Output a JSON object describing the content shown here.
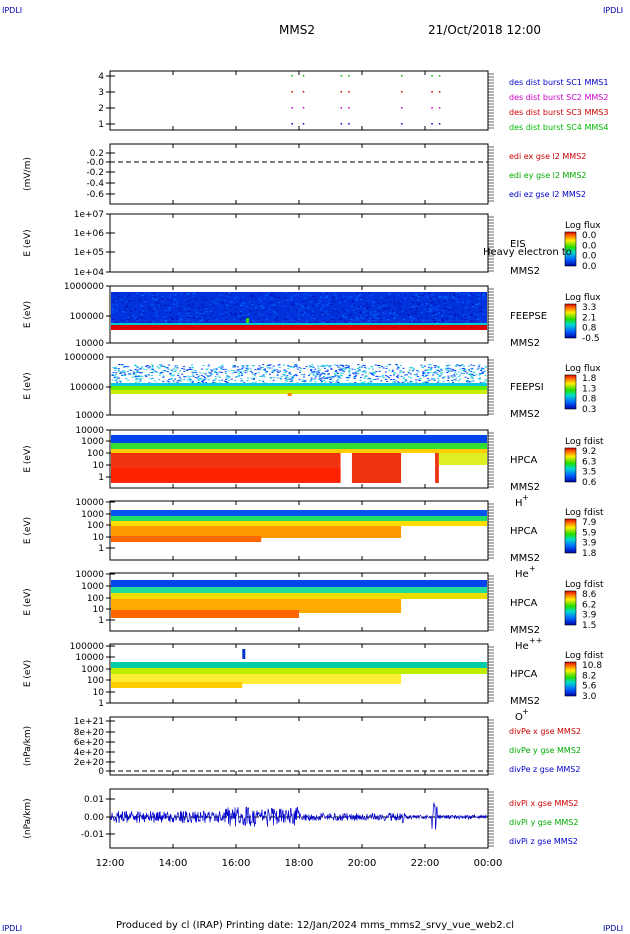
{
  "header": {
    "corner_left": "IPDLI",
    "corner_right": "IPDLI",
    "mission": "MMS2",
    "date": "21/Oct/2018 12:00"
  },
  "footer": {
    "text": "Produced by cl (IRAP)   Printing date: 12/Jan/2024   mms_mms2_srvy_vue_web2.cl"
  },
  "chart_data": {
    "type": "spectrogram-stack",
    "xaxis": {
      "ticks": [
        "12:00",
        "14:00",
        "16:00",
        "18:00",
        "20:00",
        "22:00",
        "00:00"
      ]
    },
    "panels": [
      {
        "id": "dist",
        "yticks": [
          "4",
          "3",
          "2",
          "1"
        ],
        "legend": [
          {
            "text": "des dist burst SC1 MMS1",
            "color": "#0000cc"
          },
          {
            "text": "des dist burst SC2 MMS2",
            "color": "#cc00cc"
          },
          {
            "text": "des dist burst SC3 MMS3",
            "color": "#cc0000"
          },
          {
            "text": "des dist burst SC4 MMS4",
            "color": "#00bb00"
          }
        ]
      },
      {
        "id": "edi",
        "ylabel": "(mV/m)",
        "yticks": [
          "0.2",
          "-0.0",
          "-0.2",
          "-0.4",
          "-0.6"
        ],
        "legend": [
          {
            "text": "edi ex gse l2 MMS2",
            "color": "#cc0000"
          },
          {
            "text": "edi ey gse l2 MMS2",
            "color": "#00aa00"
          },
          {
            "text": "edi ez gse l2 MMS2",
            "color": "#0000cc"
          }
        ]
      },
      {
        "id": "eis",
        "ylabel": "E (eV)",
        "yticks": [
          "1e+07",
          "1e+06",
          "1e+05",
          "1e+04"
        ],
        "name1": "EIS",
        "name2": "MMS2",
        "overlay": "Heavy electron to",
        "cb_title": "Log flux",
        "cb": [
          "0.0",
          "0.0",
          "0.0",
          "0.0"
        ]
      },
      {
        "id": "feepse",
        "ylabel": "E (eV)",
        "yticks": [
          "1000000",
          "100000",
          "10000"
        ],
        "name1": "FEEPSE",
        "name2": "MMS2",
        "cb_title": "Log flux",
        "cb": [
          "3.3",
          "2.1",
          "0.8",
          "-0.5"
        ]
      },
      {
        "id": "feepsi",
        "ylabel": "E (eV)",
        "yticks": [
          "1000000",
          "100000",
          "10000"
        ],
        "name1": "FEEPSI",
        "name2": "MMS2",
        "cb_title": "Log flux",
        "cb": [
          "1.8",
          "1.3",
          "0.8",
          "0.3"
        ]
      },
      {
        "id": "hpca_h",
        "ylabel": "E (eV)",
        "yticks": [
          "10000",
          "1000",
          "100",
          "10",
          "1"
        ],
        "name1": "HPCA",
        "name2": "MMS2",
        "species": "H",
        "charge": "+",
        "cb_title": "Log fdist",
        "cb": [
          "9.2",
          "6.3",
          "3.5",
          "0.6"
        ]
      },
      {
        "id": "hpca_he",
        "ylabel": "E (eV)",
        "yticks": [
          "10000",
          "1000",
          "100",
          "10",
          "1"
        ],
        "name1": "HPCA",
        "name2": "MMS2",
        "species": "He",
        "charge": "+",
        "cb_title": "Log fdist",
        "cb": [
          "7.9",
          "5.9",
          "3.9",
          "1.8"
        ]
      },
      {
        "id": "hpca_hepp",
        "ylabel": "E (eV)",
        "yticks": [
          "10000",
          "1000",
          "100",
          "10",
          "1"
        ],
        "name1": "HPCA",
        "name2": "MMS2",
        "species": "He",
        "charge": "++",
        "cb_title": "Log fdist",
        "cb": [
          "8.6",
          "6.2",
          "3.9",
          "1.5"
        ]
      },
      {
        "id": "hpca_o",
        "ylabel": "E (eV)",
        "yticks": [
          "100000",
          "10000",
          "1000",
          "100",
          "10",
          "1"
        ],
        "name1": "HPCA",
        "name2": "MMS2",
        "species": "O",
        "charge": "+",
        "cb_title": "Log fdist",
        "cb": [
          "10.8",
          "8.2",
          "5.6",
          "3.0"
        ]
      },
      {
        "id": "divpe",
        "ylabel": "(nPa/km)",
        "yticks": [
          "1e+21",
          "8e+20",
          "6e+20",
          "4e+20",
          "2e+20",
          "0"
        ],
        "legend": [
          {
            "text": "divPe x gse MMS2",
            "color": "#cc0000"
          },
          {
            "text": "divPe y gse MMS2",
            "color": "#00aa00"
          },
          {
            "text": "divPe z gse MMS2",
            "color": "#0000cc"
          }
        ]
      },
      {
        "id": "divpi",
        "ylabel": "(nPa/km)",
        "yticks": [
          "0.01",
          "0.00",
          "-0.01"
        ],
        "legend": [
          {
            "text": "divPi x gse MMS2",
            "color": "#cc0000"
          },
          {
            "text": "divPi y gse MMS2",
            "color": "#00aa00"
          },
          {
            "text": "divPi z gse MMS2",
            "color": "#0000cc"
          }
        ]
      }
    ]
  }
}
